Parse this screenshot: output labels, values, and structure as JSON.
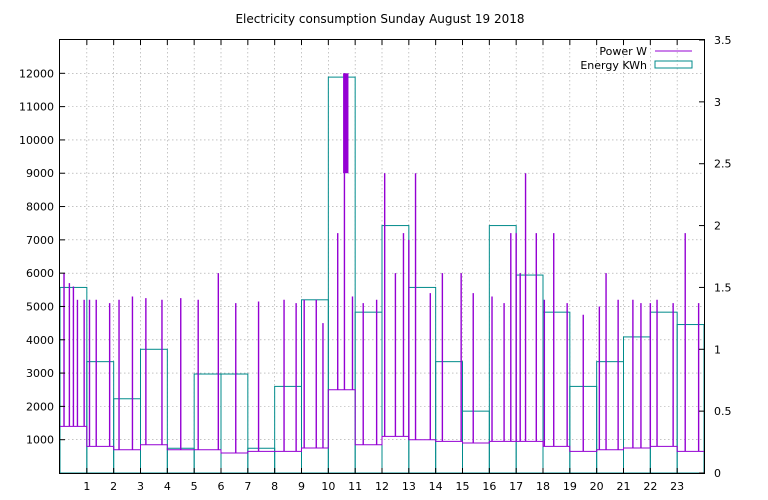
{
  "chart_data": {
    "type": "line",
    "title": "Electricity consumption Sunday August 19 2018",
    "xlabel": "",
    "ylabel": "",
    "y2label": "",
    "grid": true,
    "legend_position": "top-right",
    "xlim": [
      0,
      24
    ],
    "ylim": [
      0,
      13000
    ],
    "y2lim": [
      0,
      3.5
    ],
    "x_ticks": [
      1,
      2,
      3,
      4,
      5,
      6,
      7,
      8,
      9,
      10,
      11,
      12,
      13,
      14,
      15,
      16,
      17,
      18,
      19,
      20,
      21,
      22,
      23
    ],
    "y_ticks": [
      1000,
      2000,
      3000,
      4000,
      5000,
      6000,
      7000,
      8000,
      9000,
      10000,
      11000,
      12000
    ],
    "y2_ticks": [
      0,
      0.5,
      1,
      1.5,
      2,
      2.5,
      3,
      3.5
    ],
    "series": [
      {
        "name": "Power W",
        "axis": "y",
        "style": "line",
        "color": "#9400d3",
        "base": [
          1400,
          800,
          700,
          850,
          700,
          700,
          600,
          650,
          650,
          750,
          2500,
          850,
          1100,
          1000,
          950,
          900,
          950,
          950,
          800,
          650,
          700,
          750,
          800,
          650
        ],
        "spikes": [
          [
            0.15,
            6000
          ],
          [
            0.35,
            5700
          ],
          [
            0.5,
            5600
          ],
          [
            0.65,
            5200
          ],
          [
            0.9,
            5200
          ],
          [
            1.1,
            5200
          ],
          [
            1.35,
            5200
          ],
          [
            1.85,
            5100
          ],
          [
            2.2,
            5200
          ],
          [
            2.7,
            5300
          ],
          [
            3.2,
            5250
          ],
          [
            3.8,
            5200
          ],
          [
            4.5,
            5250
          ],
          [
            5.15,
            5200
          ],
          [
            5.9,
            6000
          ],
          [
            6.55,
            5100
          ],
          [
            7.4,
            5150
          ],
          [
            8.35,
            5200
          ],
          [
            8.8,
            5100
          ],
          [
            9.1,
            5200
          ],
          [
            9.55,
            5200
          ],
          [
            9.8,
            4500
          ],
          [
            10.35,
            7200
          ],
          [
            10.6,
            12000
          ],
          [
            10.9,
            5300
          ],
          [
            11.3,
            5100
          ],
          [
            11.8,
            5200
          ],
          [
            12.1,
            9000
          ],
          [
            12.5,
            6000
          ],
          [
            12.8,
            7200
          ],
          [
            13.0,
            7000
          ],
          [
            13.25,
            9000
          ],
          [
            13.8,
            5400
          ],
          [
            14.25,
            6000
          ],
          [
            14.95,
            6000
          ],
          [
            15.4,
            5400
          ],
          [
            16.1,
            5300
          ],
          [
            16.55,
            5100
          ],
          [
            16.8,
            7200
          ],
          [
            17.0,
            7200
          ],
          [
            17.15,
            6000
          ],
          [
            17.35,
            9000
          ],
          [
            17.75,
            7200
          ],
          [
            18.05,
            5200
          ],
          [
            18.4,
            7200
          ],
          [
            18.9,
            5100
          ],
          [
            19.5,
            4750
          ],
          [
            20.1,
            5000
          ],
          [
            20.35,
            6000
          ],
          [
            20.8,
            5200
          ],
          [
            21.35,
            5200
          ],
          [
            21.65,
            5100
          ],
          [
            22.0,
            5100
          ],
          [
            22.25,
            5200
          ],
          [
            22.85,
            5100
          ],
          [
            23.3,
            7200
          ],
          [
            23.8,
            5100
          ]
        ],
        "plateau": [
          10.55,
          10.75,
          9000,
          12000
        ]
      },
      {
        "name": "Energy KWh",
        "axis": "y2",
        "style": "steps",
        "color": "#008b8b",
        "x": [
          0,
          1,
          2,
          3,
          4,
          5,
          6,
          7,
          8,
          9,
          10,
          11,
          12,
          13,
          14,
          15,
          16,
          17,
          18,
          19,
          20,
          21,
          22,
          23
        ],
        "values": [
          1.5,
          0.9,
          0.6,
          1.0,
          0.2,
          0.8,
          0.8,
          0.2,
          0.7,
          1.4,
          3.2,
          1.3,
          2.0,
          1.5,
          0.9,
          0.5,
          2.0,
          1.6,
          1.3,
          0.7,
          0.9,
          1.1,
          1.3,
          1.2
        ]
      }
    ]
  }
}
